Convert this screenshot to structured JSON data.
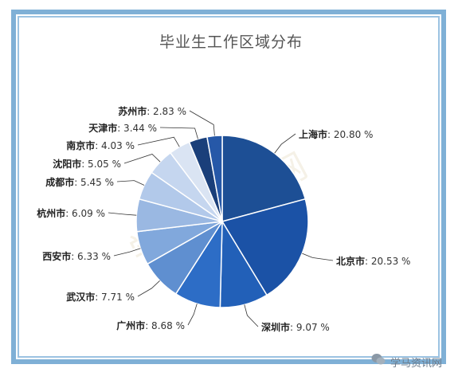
{
  "chart_data": {
    "type": "pie",
    "title": "毕业生工作区域分布",
    "slices": [
      {
        "city": "上海市",
        "value": 20.8,
        "value_text": ": 20.80 %",
        "color": "#1d4f95"
      },
      {
        "city": "北京市",
        "value": 20.53,
        "value_text": ": 20.53 %",
        "color": "#1b52a6"
      },
      {
        "city": "深圳市",
        "value": 9.07,
        "value_text": ": 9.07 %",
        "color": "#2260b8"
      },
      {
        "city": "广州市",
        "value": 8.68,
        "value_text": ": 8.68 %",
        "color": "#2d6dc6"
      },
      {
        "city": "武汉市",
        "value": 7.71,
        "value_text": ": 7.71 %",
        "color": "#5f8fd0"
      },
      {
        "city": "西安市",
        "value": 6.33,
        "value_text": ": 6.33 %",
        "color": "#81a8dc"
      },
      {
        "city": "杭州市",
        "value": 6.09,
        "value_text": ": 6.09 %",
        "color": "#9ab8e2"
      },
      {
        "city": "成都市",
        "value": 5.45,
        "value_text": ": 5.45 %",
        "color": "#b2c9ea"
      },
      {
        "city": "沈阳市",
        "value": 5.05,
        "value_text": ": 5.05 %",
        "color": "#c5d6ef"
      },
      {
        "city": "南京市",
        "value": 4.03,
        "value_text": ": 4.03 %",
        "color": "#dae4f3"
      },
      {
        "city": "天津市",
        "value": 3.44,
        "value_text": ": 3.44 %",
        "color": "#1a3f7a"
      },
      {
        "city": "苏州市",
        "value": 2.83,
        "value_text": ": 2.83 %",
        "color": "#2658a8"
      }
    ]
  },
  "watermark": {
    "text": "学马资讯网",
    "background_text": "学马资讯网"
  }
}
